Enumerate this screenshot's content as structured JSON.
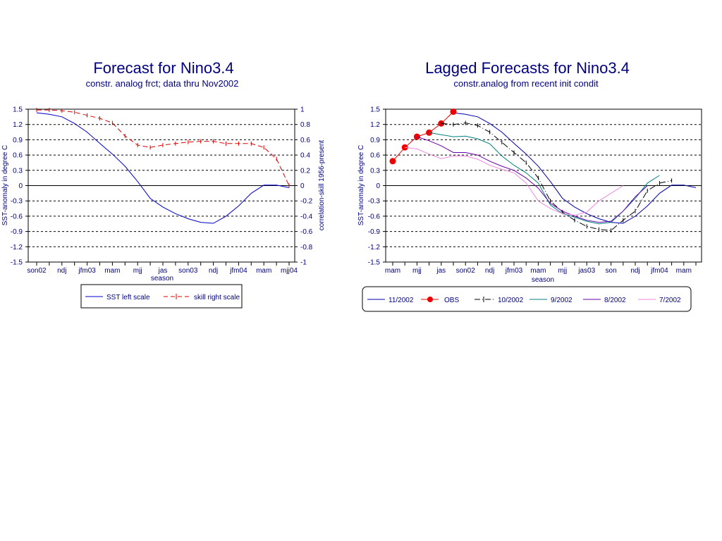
{
  "chart_data": [
    {
      "type": "line",
      "title": "Forecast for Nino3.4",
      "subtitle": "constr. analog frct; data thru Nov2002",
      "xlabel": "season",
      "ylabel": "SST-anomaly in degree C",
      "y2label": "correlation-skill 1956-present",
      "ylim": [
        -1.5,
        1.5
      ],
      "y2lim": [
        -1,
        1
      ],
      "yticks": [
        "1.5",
        "1.2",
        "0.9",
        "0.6",
        "0.3",
        "0",
        "-0.3",
        "-0.6",
        "-0.9",
        "-1.2",
        "-1.5"
      ],
      "y2ticks": [
        "1",
        "0.8",
        "0.6",
        "0.4",
        "0.2",
        "0",
        "-0.2",
        "-0.4",
        "-0.6",
        "-0.8",
        "-1"
      ],
      "xtick_labels": [
        "son02",
        "ndj",
        "jfm03",
        "mam",
        "mjj",
        "jas",
        "son03",
        "ndj",
        "jfm04",
        "mam",
        "mjj04"
      ],
      "grid": true,
      "legend_position": "bottom",
      "series": [
        {
          "name": "SST left scale",
          "axis": "left",
          "color": "#0000cc",
          "style": "solid",
          "values": [
            1.43,
            1.4,
            1.35,
            1.22,
            1.05,
            0.83,
            0.62,
            0.38,
            0.08,
            -0.25,
            -0.42,
            -0.55,
            -0.65,
            -0.72,
            -0.74,
            -0.6,
            -0.4,
            -0.15,
            0.01,
            0.01,
            -0.04
          ]
        },
        {
          "name": "skill right scale",
          "axis": "right",
          "color": "#dd0000",
          "style": "dashed",
          "values": [
            0.99,
            0.99,
            0.98,
            0.96,
            0.92,
            0.88,
            0.82,
            0.65,
            0.53,
            0.5,
            0.53,
            0.55,
            0.57,
            0.58,
            0.58,
            0.55,
            0.55,
            0.55,
            0.5,
            0.35,
            0.0
          ]
        }
      ]
    },
    {
      "type": "line",
      "title": "Lagged Forecasts for Nino3.4",
      "subtitle": "constr.analog from recent init condit",
      "xlabel": "season",
      "ylabel": "SST-anomaly in degree C",
      "ylim": [
        -1.5,
        1.5
      ],
      "yticks": [
        "1.5",
        "1.2",
        "0.9",
        "0.6",
        "0.3",
        "0",
        "-0.3",
        "-0.6",
        "-0.9",
        "-1.2",
        "-1.5"
      ],
      "xtick_labels": [
        "mam",
        "mjj",
        "jas",
        "son02",
        "ndj",
        "jfm03",
        "mam",
        "mjj",
        "jas03",
        "son",
        "ndj",
        "jfm04",
        "mam"
      ],
      "grid": true,
      "legend_position": "bottom",
      "series": [
        {
          "name": "11/2002",
          "color": "#0000aa",
          "style": "solid",
          "start": 5,
          "values": [
            1.43,
            1.4,
            1.35,
            1.22,
            1.05,
            0.83,
            0.62,
            0.38,
            0.08,
            -0.25,
            -0.42,
            -0.55,
            -0.65,
            -0.72,
            -0.74,
            -0.6,
            -0.4,
            -0.15,
            0.01,
            0.01,
            -0.04
          ]
        },
        {
          "name": "OBS",
          "color": "#ee0000",
          "style": "dots",
          "start": 0,
          "values": [
            0.48,
            0.75,
            0.96,
            1.04,
            1.22,
            1.45
          ]
        },
        {
          "name": "10/2002",
          "color": "#000000",
          "style": "dashdot",
          "start": 4,
          "values": [
            1.22,
            1.2,
            1.23,
            1.18,
            1.05,
            0.85,
            0.65,
            0.45,
            0.15,
            -0.3,
            -0.52,
            -0.68,
            -0.8,
            -0.86,
            -0.88,
            -0.68,
            -0.5,
            -0.1,
            0.05,
            0.1
          ]
        },
        {
          "name": "9/2002",
          "color": "#008080",
          "style": "solid",
          "start": 3,
          "values": [
            1.04,
            1.0,
            0.96,
            0.97,
            0.92,
            0.82,
            0.58,
            0.4,
            0.25,
            0.05,
            -0.38,
            -0.55,
            -0.62,
            -0.7,
            -0.75,
            -0.72,
            -0.5,
            -0.25,
            0.05,
            0.2
          ]
        },
        {
          "name": "8/2002",
          "color": "#6600aa",
          "style": "solid",
          "start": 2,
          "values": [
            0.96,
            0.88,
            0.78,
            0.65,
            0.65,
            0.6,
            0.48,
            0.38,
            0.3,
            0.15,
            -0.05,
            -0.35,
            -0.5,
            -0.6,
            -0.68,
            -0.72,
            -0.7,
            -0.5,
            -0.22,
            0.0
          ]
        },
        {
          "name": "7/2002",
          "color": "#ee88dd",
          "style": "solid",
          "start": 1,
          "values": [
            0.75,
            0.72,
            0.62,
            0.53,
            0.58,
            0.58,
            0.52,
            0.4,
            0.32,
            0.25,
            0.05,
            -0.3,
            -0.45,
            -0.55,
            -0.58,
            -0.52,
            -0.3,
            -0.15,
            0.0
          ]
        }
      ]
    }
  ]
}
